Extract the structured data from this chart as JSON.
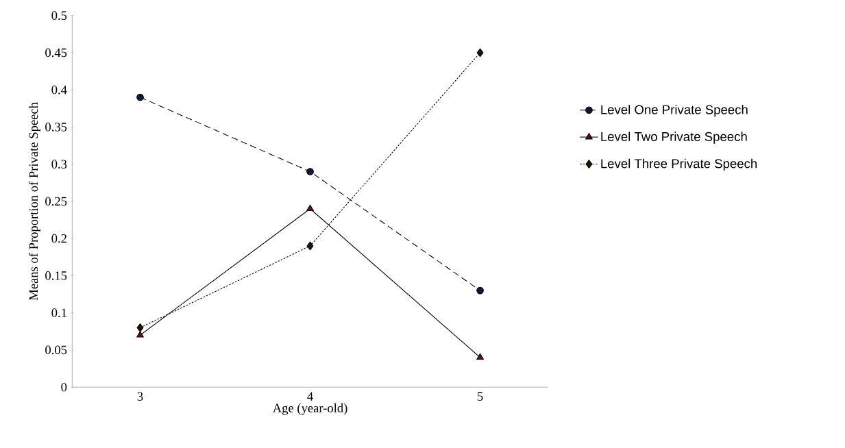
{
  "chart_data": {
    "type": "line",
    "xlabel": "Age (year-old)",
    "ylabel": "Means of Proportion of Private Speech",
    "categories": [
      "3",
      "4",
      "5"
    ],
    "series": [
      {
        "name": "Level One Private Speech",
        "color": "#0d1a3a",
        "values": [
          0.39,
          0.29,
          0.13
        ],
        "marker": "circle",
        "line_style": "dashed"
      },
      {
        "name": "Level Two Private Speech",
        "color": "#5c1414",
        "values": [
          0.07,
          0.24,
          0.04
        ],
        "marker": "triangle",
        "line_style": "solid"
      },
      {
        "name": "Level Three Private Speech",
        "color": "#141a05",
        "values": [
          0.08,
          0.19,
          0.45
        ],
        "marker": "diamond",
        "line_style": "dotted"
      }
    ],
    "ylim": [
      0,
      0.5
    ],
    "yticks": [
      0,
      0.05,
      0.1,
      0.15,
      0.2,
      0.25,
      0.3,
      0.35,
      0.4,
      0.45,
      0.5
    ],
    "grid": false,
    "legend": "right"
  }
}
